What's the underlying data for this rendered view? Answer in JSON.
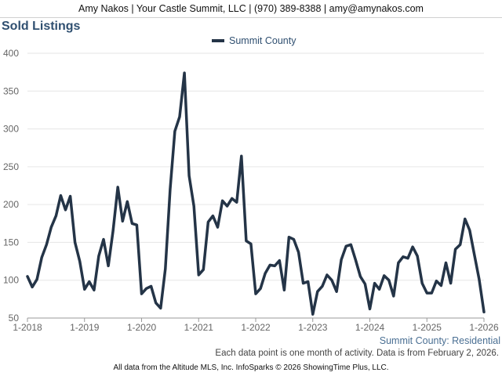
{
  "header": {
    "contact": "Amy Nakos | Your Castle Summit, LLC | (970) 389-8388 | amy@amynakos.com"
  },
  "chart_data": {
    "type": "line",
    "title": "Sold Listings",
    "x_start": "2018-01",
    "x_ticks": [
      "1-2018",
      "1-2019",
      "1-2020",
      "1-2021",
      "1-2022",
      "1-2023",
      "1-2024",
      "1-2025",
      "1-2026"
    ],
    "ylim": [
      50,
      400
    ],
    "y_ticks": [
      50,
      100,
      150,
      200,
      250,
      300,
      350,
      400
    ],
    "grid": "horizontal",
    "legend": "top-center",
    "series": [
      {
        "name": "Summit County",
        "color": "#243447",
        "values": [
          105,
          91,
          101,
          130,
          147,
          170,
          185,
          212,
          193,
          211,
          150,
          125,
          88,
          98,
          87,
          132,
          154,
          119,
          165,
          223,
          178,
          204,
          175,
          173,
          82,
          89,
          92,
          70,
          63,
          115,
          220,
          297,
          316,
          374,
          238,
          198,
          107,
          114,
          177,
          185,
          170,
          205,
          198,
          208,
          203,
          264,
          152,
          148,
          82,
          89,
          109,
          120,
          119,
          126,
          87,
          157,
          154,
          137,
          96,
          98,
          55,
          85,
          92,
          107,
          100,
          85,
          127,
          145,
          147,
          127,
          105,
          95,
          62,
          96,
          88,
          106,
          100,
          79,
          123,
          131,
          129,
          144,
          132,
          96,
          83,
          83,
          99,
          93,
          123,
          96,
          141,
          147,
          181,
          166,
          133,
          101,
          58
        ]
      }
    ]
  },
  "region_label": "Summit County: Residential",
  "note": "Each data point is one month of activity. Data is from February 2, 2026.",
  "footer": "All data from the Altitude MLS, Inc. InfoSparks © 2026 ShowingTime Plus, LLC."
}
